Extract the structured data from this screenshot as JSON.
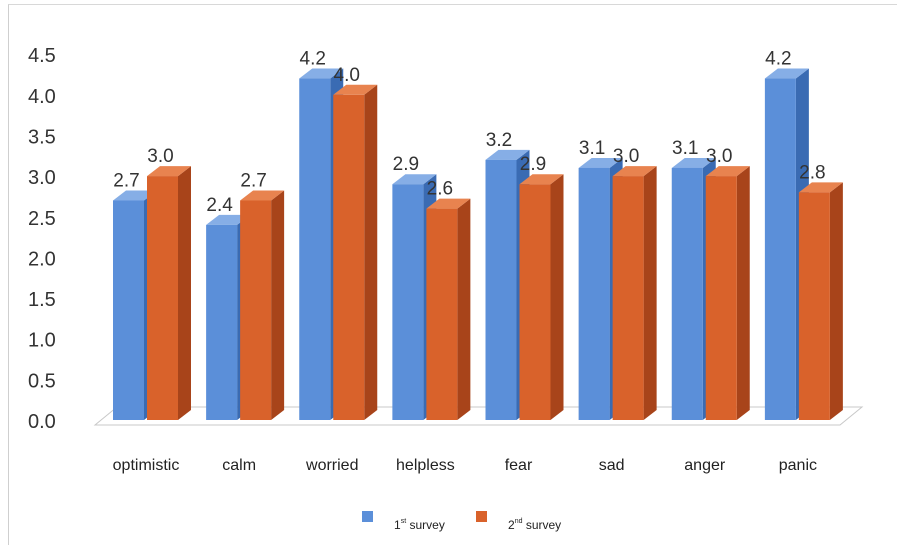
{
  "chart_data": {
    "type": "bar",
    "categories": [
      "optimistic",
      "calm",
      "worried",
      "helpless",
      "fear",
      "sad",
      "anger",
      "panic"
    ],
    "series": [
      {
        "name": "1st survey",
        "legend_main": "1",
        "legend_sup": "st",
        "legend_rest": " survey",
        "color": "#5b8fd9",
        "color_side": "#3a6bb3",
        "color_top": "#86aee6",
        "values": [
          2.7,
          2.4,
          4.2,
          2.9,
          3.2,
          3.1,
          3.1,
          4.2
        ]
      },
      {
        "name": "2nd survey",
        "legend_main": "2",
        "legend_sup": "nd",
        "legend_rest": " survey",
        "color": "#d9622b",
        "color_side": "#a8441a",
        "color_top": "#e8834f",
        "values": [
          3.0,
          2.7,
          4.0,
          2.6,
          2.9,
          3.0,
          3.0,
          2.8
        ]
      }
    ],
    "data_labels": [
      [
        "2.7",
        "2.4",
        "4.2",
        "2.9",
        "3.2",
        "3.1",
        "3.1",
        "4.2"
      ],
      [
        "3.0",
        "2.7",
        "4.0",
        "2.6",
        "2.9",
        "3.0",
        "3.0",
        "2.8"
      ]
    ],
    "y_ticks": [
      "0.0",
      "0.5",
      "1.0",
      "1.5",
      "2.0",
      "2.5",
      "3.0",
      "3.5",
      "4.0",
      "4.5"
    ],
    "ylim": [
      0,
      4.5
    ],
    "grid": false,
    "legend_position": "bottom",
    "title": "",
    "xlabel": "",
    "ylabel": ""
  }
}
